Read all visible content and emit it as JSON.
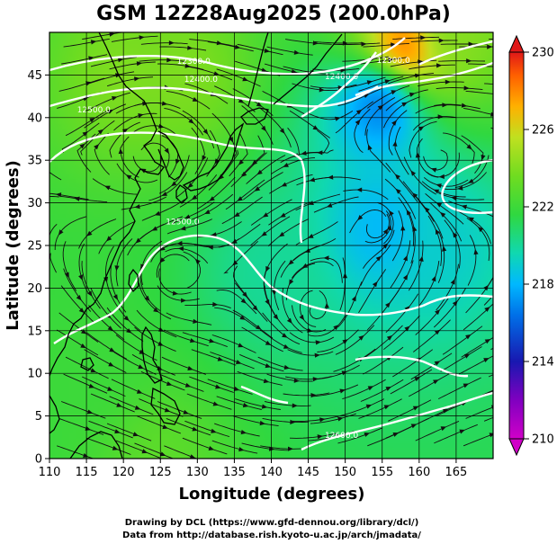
{
  "title": "GSM 12Z28Aug2025 (200.0hPa)",
  "xlabel": "Longitude (degrees)",
  "ylabel": "Latitude  (degrees)",
  "credit_lines": [
    "Drawing by DCL (https://www.gfd-dennou.org/library/dcl/)",
    "Data from http://database.rish.kyoto-u.ac.jp/arch/jmadata/"
  ],
  "chart_data": {
    "type": "heatmap",
    "xlim": [
      110,
      170
    ],
    "ylim": [
      0,
      50
    ],
    "xticks": [
      110,
      115,
      120,
      125,
      130,
      135,
      140,
      145,
      150,
      155,
      160,
      165
    ],
    "yticks": [
      0,
      5,
      10,
      15,
      20,
      25,
      30,
      35,
      40,
      45
    ],
    "grid": true,
    "colorbar": {
      "ticks": [
        210,
        214,
        218,
        222,
        226,
        230
      ],
      "range": [
        210,
        230
      ],
      "placement": "right"
    },
    "contour_labels": [
      {
        "text": "12300.0",
        "lon": 129.5,
        "lat": 46.3
      },
      {
        "text": "12400.0",
        "lon": 130.5,
        "lat": 44.2
      },
      {
        "text": "12500.0",
        "lon": 116.0,
        "lat": 40.6
      },
      {
        "text": "12400.0",
        "lon": 149.5,
        "lat": 44.5
      },
      {
        "text": "12300.0",
        "lon": 156.5,
        "lat": 46.4
      },
      {
        "text": "12500.0",
        "lon": 128.0,
        "lat": 27.5
      },
      {
        "text": "12600.0",
        "lon": 149.5,
        "lat": 2.4
      }
    ],
    "field_centers": [
      {
        "lon": 158,
        "lat": 48,
        "value": 229
      },
      {
        "lon": 164,
        "lat": 50,
        "value": 224
      },
      {
        "lon": 155,
        "lat": 42,
        "value": 216
      },
      {
        "lon": 155,
        "lat": 27,
        "value": 218
      },
      {
        "lon": 163,
        "lat": 25,
        "value": 219
      },
      {
        "lon": 140,
        "lat": 22,
        "value": 220
      },
      {
        "lon": 120,
        "lat": 45,
        "value": 224
      },
      {
        "lon": 128,
        "lat": 45,
        "value": 224
      },
      {
        "lon": 115,
        "lat": 10,
        "value": 222
      },
      {
        "lon": 125,
        "lat": 0,
        "value": 223
      }
    ],
    "background_value": 221.5,
    "vortices": [
      {
        "lon": 126.5,
        "lat": 22,
        "dir": 1
      },
      {
        "lon": 124,
        "lat": 35,
        "dir": -1
      },
      {
        "lon": 146,
        "lat": 17,
        "dir": 1
      },
      {
        "lon": 162,
        "lat": 35,
        "dir": -1
      },
      {
        "lon": 155,
        "lat": 28,
        "dir": 1
      }
    ]
  },
  "colors": {
    "colorbar_stops": [
      "#d000c8",
      "#1818b0",
      "#00b0ff",
      "#10d8a0",
      "#38d830",
      "#a8e020",
      "#ff9000",
      "#e01818"
    ],
    "contour": "#ffffff",
    "stream": "#111111"
  }
}
